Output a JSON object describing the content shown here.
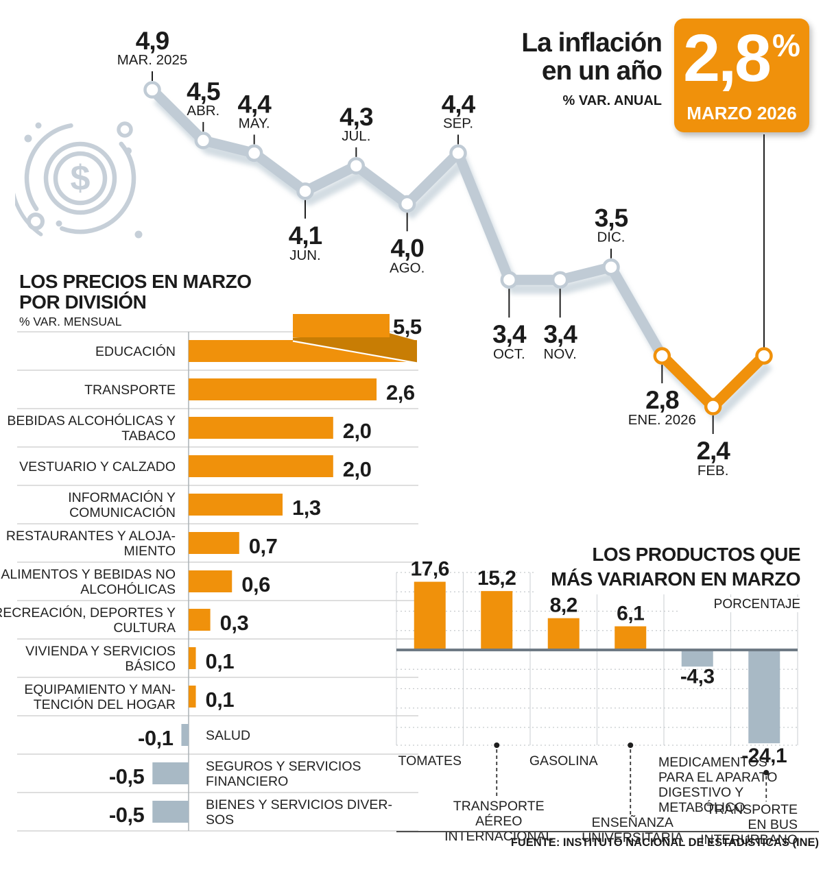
{
  "header": {
    "title_line1": "La inflación",
    "title_line2": "en un año",
    "subtitle": "% VAR. ANUAL",
    "highlight_value": "2,8",
    "highlight_unit": "%",
    "highlight_period": "MARZO 2026"
  },
  "colors": {
    "accent": "#F0910B",
    "accent_dark": "#C87D04",
    "line_gray": "#C0CBD5",
    "shadow_gray": "#AEBFCB",
    "bar_gray": "#A8B9C5",
    "axis_dark": "#6E7A84",
    "grid_light": "#D3D6D9",
    "separator": "#CBCBCB",
    "tick_black": "#1f1f1f",
    "icon_gray": "#C6CFD8"
  },
  "chart_data": [
    {
      "id": "annual-inflation-line",
      "type": "line",
      "title": "La inflación en un año",
      "unit_label": "% VAR. ANUAL",
      "x": [
        "MAR. 2025",
        "ABR.",
        "MAY.",
        "JUN.",
        "JUL.",
        "AGO.",
        "SEP.",
        "OCT.",
        "NOV.",
        "DIC.",
        "ENE. 2026",
        "FEB.",
        "MAR. 2026"
      ],
      "values": [
        4.9,
        4.5,
        4.4,
        4.1,
        4.3,
        4.0,
        4.4,
        3.4,
        3.4,
        3.5,
        2.8,
        2.4,
        2.8
      ],
      "value_displays": [
        "4,9",
        "4,5",
        "4,4",
        "4,1",
        "4,3",
        "4,0",
        "4,4",
        "3,4",
        "3,4",
        "3,5",
        "2,8",
        "2,4",
        "2,8"
      ],
      "label_side": [
        "above",
        "above",
        "above",
        "below",
        "above",
        "below",
        "above",
        "below",
        "below",
        "above",
        "below",
        "below",
        "none"
      ],
      "label_extra": [
        0,
        0,
        0,
        0,
        0,
        0,
        0,
        15,
        15,
        0,
        0,
        0,
        0
      ],
      "highlight_from_index": 10,
      "ylim": [
        2.0,
        5.2
      ],
      "grid": false,
      "legend": "none"
    },
    {
      "id": "division-bars",
      "type": "bar",
      "orientation": "horizontal",
      "title_lines": [
        "LOS PRECIOS EN MARZO",
        "POR DIVISIÓN"
      ],
      "unit_label": "% VAR. MENSUAL",
      "xlim": [
        -0.6,
        3.2
      ],
      "items": [
        {
          "label_lines": [
            "EDUCACIÓN"
          ],
          "value": 5.5,
          "display": "5,5",
          "overflow": true
        },
        {
          "label_lines": [
            "TRANSPORTE"
          ],
          "value": 2.6,
          "display": "2,6"
        },
        {
          "label_lines": [
            "BEBIDAS ALCOHÓLICAS Y",
            "TABACO"
          ],
          "value": 2.0,
          "display": "2,0"
        },
        {
          "label_lines": [
            "VESTUARIO Y CALZADO"
          ],
          "value": 2.0,
          "display": "2,0"
        },
        {
          "label_lines": [
            "INFORMACIÓN Y",
            "COMUNICACIÓN"
          ],
          "value": 1.3,
          "display": "1,3"
        },
        {
          "label_lines": [
            "RESTAURANTES Y ALOJA-",
            "MIENTO"
          ],
          "value": 0.7,
          "display": "0,7"
        },
        {
          "label_lines": [
            "ALIMENTOS Y BEBIDAS NO",
            "ALCOHÓLICAS"
          ],
          "value": 0.6,
          "display": "0,6"
        },
        {
          "label_lines": [
            "RECREACIÓN, DEPORTES Y",
            "CULTURA"
          ],
          "value": 0.3,
          "display": "0,3"
        },
        {
          "label_lines": [
            "VIVIENDA Y SERVICIOS",
            "BÁSICO"
          ],
          "value": 0.1,
          "display": "0,1"
        },
        {
          "label_lines": [
            "EQUIPAMIENTO Y MAN-",
            "TENCIÓN DEL HOGAR"
          ],
          "value": 0.1,
          "display": "0,1"
        },
        {
          "label_lines": [
            "SALUD"
          ],
          "value": -0.1,
          "display": "-0,1"
        },
        {
          "label_lines": [
            "SEGUROS Y SERVICIOS",
            "FINANCIERO"
          ],
          "value": -0.5,
          "display": "-0,5"
        },
        {
          "label_lines": [
            "BIENES Y SERVICIOS DIVER-",
            "SOS"
          ],
          "value": -0.5,
          "display": "-0,5"
        }
      ]
    },
    {
      "id": "products-bars",
      "type": "bar",
      "orientation": "vertical",
      "title_lines": [
        "LOS PRODUCTOS QUE",
        "MÁS VARIARON EN MARZO"
      ],
      "unit_label": "PORCENTAJE",
      "ylim": [
        -25,
        20
      ],
      "grid_step": 5,
      "items": [
        {
          "label_lines": [
            "TOMATES"
          ],
          "value": 17.6,
          "display": "17,6",
          "label_row": "near",
          "label_align": "center",
          "connector": false
        },
        {
          "label_lines": [
            "TRANSPORTE",
            "AÉREO",
            "INTERNACIONAL"
          ],
          "value": 15.2,
          "display": "15,2",
          "label_row": "far",
          "label_align": "center",
          "connector": true
        },
        {
          "label_lines": [
            "GASOLINA"
          ],
          "value": 8.2,
          "display": "8,2",
          "label_row": "near",
          "label_align": "center",
          "connector": false
        },
        {
          "label_lines": [
            "ENSEÑANZA",
            "UNIVERSITARIA"
          ],
          "value": 6.1,
          "display": "6,1",
          "label_row": "far",
          "label_align": "center",
          "connector": true
        },
        {
          "label_lines": [
            "MEDICAMENTOS",
            "PARA EL APARATO",
            "DIGESTIVO Y",
            "METABÓLICO"
          ],
          "value": -4.3,
          "display": "-4,3",
          "label_row": "near",
          "label_align": "left",
          "connector": false
        },
        {
          "label_lines": [
            "TRANSPORTE",
            "EN BUS",
            "INTERURBANO"
          ],
          "value": -24.1,
          "display": "-24,1",
          "label_row": "far",
          "label_align": "right",
          "connector": true
        }
      ]
    }
  ],
  "icon": {
    "name": "coin-dollar-icon",
    "glyph": "$"
  },
  "footer": {
    "source": "FUENTE: INSTITUTO NACIONAL DE ESTADÍSTICAS (INE)"
  }
}
